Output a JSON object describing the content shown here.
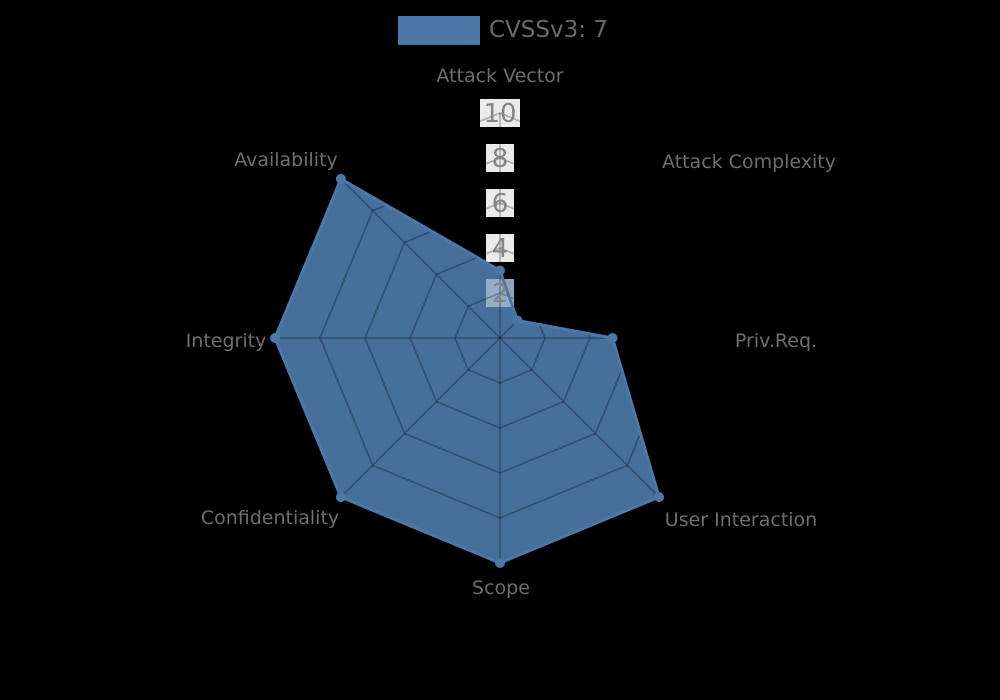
{
  "chart_data": {
    "type": "radar",
    "categories": [
      "Attack Vector",
      "Attack Complexity",
      "Priv.Req.",
      "User Interaction",
      "Scope",
      "Confidentiality",
      "Integrity",
      "Availability"
    ],
    "series": [
      {
        "name": "CVSSv3: 7",
        "values": [
          3,
          1.1,
          5,
          10,
          10,
          10,
          10,
          10
        ],
        "color": "#4c78a8"
      }
    ],
    "radial_ticks": [
      "2",
      "4",
      "6",
      "8",
      "10"
    ],
    "radial_tick_values": [
      2,
      4,
      6,
      8,
      10
    ],
    "rlim": [
      0,
      10
    ],
    "start_axis": "top",
    "direction": "clockwise",
    "grid": true,
    "legend_position": "top-center",
    "background_color": "#000000",
    "label_color": "#6e6e6e",
    "tick_label_color": "#848484"
  }
}
